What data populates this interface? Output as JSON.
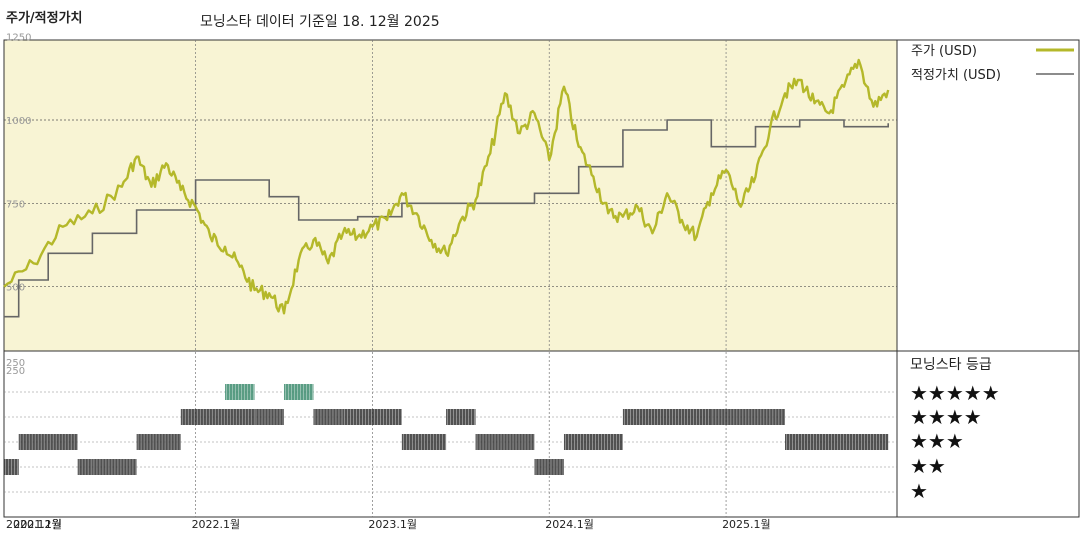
{
  "header": {
    "title": "주가/적정가치",
    "subtitle": "모닝스타 데이터 기준일 18. 12월 2025"
  },
  "colors": {
    "price": "#b4b82a",
    "fair_value": "#666666",
    "plot_bg": "#f8f4d4",
    "rating_green": "#3d8c6e",
    "rating_dark": "#333333"
  },
  "legend": {
    "price_label": "주가 (USD)",
    "fair_label": "적정가치 (USD)",
    "rating_title": "모닝스타 등급",
    "stars": [
      "★★★★★",
      "★★★★",
      "★★★",
      "★★",
      "★"
    ]
  },
  "chart_data": [
    {
      "type": "line",
      "title": "주가/적정가치",
      "ylim": [
        250,
        1300
      ],
      "yticks": [
        "1250",
        "1000",
        "750",
        "500",
        "250"
      ],
      "xtick_labels": [
        "2020.12월",
        "2021.1월",
        "2022.1월",
        "2023.1월",
        "2024.1월",
        "2025.1월"
      ],
      "grid": true,
      "legend_position": "right",
      "series": [
        {
          "name": "주가 (USD)",
          "x": [
            "2020-12",
            "2021-02",
            "2021-04",
            "2021-06",
            "2021-08",
            "2021-09",
            "2021-10",
            "2021-11",
            "2021-12",
            "2022-01",
            "2022-02",
            "2022-03",
            "2022-04",
            "2022-05",
            "2022-06",
            "2022-07",
            "2022-08",
            "2022-09",
            "2022-10",
            "2022-11",
            "2022-12",
            "2023-01",
            "2023-02",
            "2023-03",
            "2023-04",
            "2023-05",
            "2023-06",
            "2023-07",
            "2023-08",
            "2023-09",
            "2023-10",
            "2023-11",
            "2023-12",
            "2024-01",
            "2024-02",
            "2024-03",
            "2024-04",
            "2024-05",
            "2024-06",
            "2024-07",
            "2024-08",
            "2024-09",
            "2024-10",
            "2024-11",
            "2024-12",
            "2025-01",
            "2025-02",
            "2025-03",
            "2025-04",
            "2025-05",
            "2025-06",
            "2025-07",
            "2025-08",
            "2025-09",
            "2025-10",
            "2025-11",
            "2025-12"
          ],
          "values": [
            500,
            570,
            680,
            720,
            800,
            890,
            800,
            870,
            790,
            740,
            650,
            620,
            560,
            490,
            480,
            420,
            580,
            640,
            570,
            660,
            650,
            680,
            700,
            780,
            720,
            640,
            600,
            700,
            760,
            900,
            1080,
            960,
            1020,
            880,
            1100,
            920,
            830,
            720,
            710,
            740,
            660,
            780,
            700,
            650,
            780,
            850,
            740,
            830,
            980,
            1080,
            1120,
            1050,
            1020,
            1100,
            1180,
            1040,
            1090
          ]
        },
        {
          "name": "적정가치 (USD)",
          "x": [
            "2020-12",
            "2021-01",
            "2021-03",
            "2021-06",
            "2021-09",
            "2022-01",
            "2022-06",
            "2022-08",
            "2022-12",
            "2023-03",
            "2023-06",
            "2023-09",
            "2023-12",
            "2024-03",
            "2024-06",
            "2024-09",
            "2024-12",
            "2025-03",
            "2025-06",
            "2025-09",
            "2025-12"
          ],
          "values": [
            410,
            520,
            600,
            660,
            730,
            820,
            770,
            700,
            710,
            750,
            750,
            750,
            780,
            860,
            970,
            1000,
            920,
            980,
            1000,
            980,
            990
          ]
        }
      ]
    },
    {
      "type": "heatmap",
      "title": "모닝스타 등급",
      "rows": [
        "5",
        "4",
        "3",
        "2",
        "1"
      ],
      "periods": [
        {
          "start": "2020-12",
          "end": "2021-01",
          "stars": 2
        },
        {
          "start": "2021-01",
          "end": "2021-05",
          "stars": 3
        },
        {
          "start": "2021-05",
          "end": "2021-06",
          "stars": 2
        },
        {
          "start": "2021-06",
          "end": "2021-09",
          "stars": 2
        },
        {
          "start": "2021-09",
          "end": "2021-12",
          "stars": 3
        },
        {
          "start": "2021-12",
          "end": "2022-05",
          "stars": 4
        },
        {
          "start": "2022-03",
          "end": "2022-05",
          "stars": 5
        },
        {
          "start": "2022-07",
          "end": "2022-09",
          "stars": 5
        },
        {
          "start": "2022-05",
          "end": "2022-07",
          "stars": 4
        },
        {
          "start": "2022-09",
          "end": "2022-11",
          "stars": 4
        },
        {
          "start": "2022-11",
          "end": "2023-03",
          "stars": 4
        },
        {
          "start": "2023-03",
          "end": "2023-06",
          "stars": 3
        },
        {
          "start": "2023-06",
          "end": "2023-08",
          "stars": 4
        },
        {
          "start": "2023-08",
          "end": "2023-12",
          "stars": 3
        },
        {
          "start": "2023-12",
          "end": "2024-02",
          "stars": 2
        },
        {
          "start": "2024-02",
          "end": "2024-06",
          "stars": 3
        },
        {
          "start": "2024-06",
          "end": "2024-12",
          "stars": 4
        },
        {
          "start": "2024-12",
          "end": "2025-05",
          "stars": 4
        },
        {
          "start": "2025-05",
          "end": "2025-12",
          "stars": 3
        }
      ]
    }
  ]
}
